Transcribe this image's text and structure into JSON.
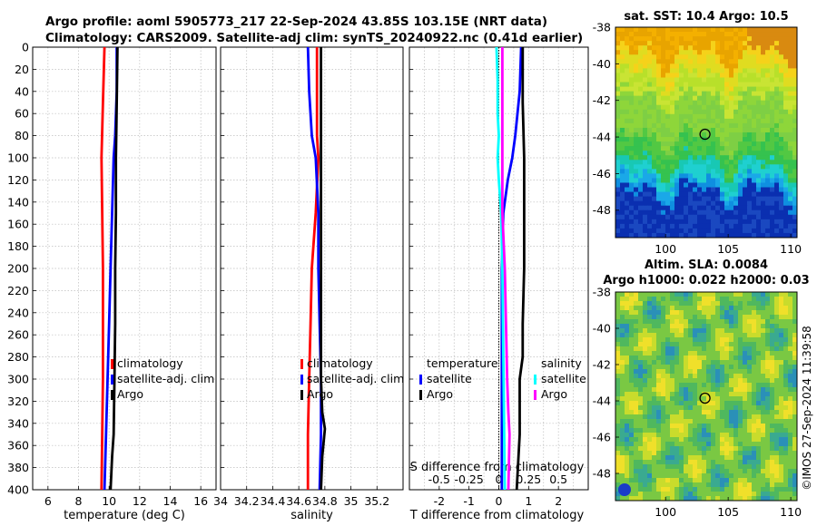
{
  "header": {
    "title_line1": "Argo profile: aoml 5905773_217 22-Sep-2024 43.85S 103.15E (NRT data)",
    "title_line2": "Climatology: CARS2009. Satellite-adj clim: synTS_20240922.nc (0.41d earlier)"
  },
  "copyright": "©IMOS 27-Sep-2024 11:39:58",
  "colors": {
    "climatology": "#ff0000",
    "satellite": "#0000ff",
    "argo": "#000000",
    "t_satellite": "#0000ff",
    "t_argo": "#000000",
    "s_satellite": "#00ffff",
    "s_argo": "#ff00ff"
  },
  "chart_data": [
    {
      "id": "temperature",
      "type": "line",
      "xlabel": "temperature (deg C)",
      "xlim": [
        5,
        17
      ],
      "xticks": [
        6,
        8,
        10,
        12,
        14,
        16
      ],
      "ylim": [
        0,
        400
      ],
      "yticks": [
        0,
        20,
        40,
        60,
        80,
        100,
        120,
        140,
        160,
        180,
        200,
        220,
        240,
        260,
        280,
        300,
        320,
        340,
        360,
        380,
        400
      ],
      "y_reversed": true,
      "grid": true,
      "legend": [
        "climatology",
        "satellite-adj. clim",
        "Argo"
      ],
      "series": [
        {
          "name": "climatology",
          "color": "red",
          "depth": [
            0,
            50,
            100,
            150,
            200,
            250,
            300,
            350,
            400
          ],
          "values": [
            9.7,
            9.6,
            9.5,
            9.55,
            9.6,
            9.6,
            9.6,
            9.55,
            9.5
          ]
        },
        {
          "name": "satellite-adj. clim",
          "color": "blue",
          "depth": [
            0,
            40,
            80,
            100,
            150,
            200,
            250,
            300,
            350,
            400
          ],
          "values": [
            10.5,
            10.5,
            10.4,
            10.3,
            10.2,
            10.1,
            10.0,
            9.9,
            9.8,
            9.7
          ]
        },
        {
          "name": "Argo",
          "color": "black",
          "depth": [
            0,
            50,
            100,
            150,
            200,
            250,
            300,
            350,
            370,
            400
          ],
          "values": [
            10.55,
            10.5,
            10.45,
            10.45,
            10.4,
            10.4,
            10.35,
            10.3,
            10.2,
            10.1
          ]
        }
      ]
    },
    {
      "id": "salinity",
      "type": "line",
      "xlabel": "salinity",
      "xlim": [
        34,
        35.4
      ],
      "xticks": [
        34,
        34.2,
        34.4,
        34.6,
        34.8,
        35,
        35.2
      ],
      "xtick_labels": [
        "34",
        "34.2",
        "34.4",
        "34.6",
        "34.8",
        "35",
        "35.2"
      ],
      "ylim": [
        0,
        400
      ],
      "y_reversed": true,
      "grid": true,
      "legend": [
        "climatology",
        "satellite-adj. clim",
        "Argo"
      ],
      "series": [
        {
          "name": "climatology",
          "color": "red",
          "depth": [
            0,
            40,
            80,
            100,
            150,
            200,
            250,
            300,
            350,
            400
          ],
          "values": [
            34.74,
            34.74,
            34.74,
            34.75,
            34.73,
            34.7,
            34.69,
            34.68,
            34.67,
            34.67
          ]
        },
        {
          "name": "satellite-adj. clim",
          "color": "blue",
          "depth": [
            0,
            40,
            80,
            100,
            150,
            200,
            250,
            300,
            350,
            400
          ],
          "values": [
            34.67,
            34.68,
            34.7,
            34.73,
            34.75,
            34.75,
            34.76,
            34.77,
            34.77,
            34.76
          ]
        },
        {
          "name": "Argo",
          "color": "black",
          "depth": [
            0,
            50,
            100,
            150,
            200,
            250,
            300,
            330,
            345,
            370,
            400
          ],
          "values": [
            34.77,
            34.77,
            34.77,
            34.77,
            34.77,
            34.77,
            34.77,
            34.78,
            34.8,
            34.78,
            34.77
          ]
        }
      ]
    },
    {
      "id": "differences",
      "type": "line",
      "xlabel": "T difference from climatology",
      "xlim": [
        -3,
        3
      ],
      "xticks": [
        -2,
        -1,
        0,
        1,
        2
      ],
      "xtick_labels": [
        "-2",
        "-1",
        "0",
        "1",
        "2"
      ],
      "s_axis_label": "S difference from climatology",
      "s_xlim": [
        -0.75,
        0.75
      ],
      "s_xticks": [
        -0.5,
        -0.25,
        0,
        0.25,
        0.5
      ],
      "s_xtick_labels": [
        "-0.5",
        "-0.25",
        "0",
        "0.25",
        "0.5"
      ],
      "ylim": [
        0,
        400
      ],
      "y_reversed": true,
      "grid": true,
      "legend_temperature_title": "temperature",
      "legend_salinity_title": "salinity",
      "legend_temperature": [
        "satellite",
        "Argo"
      ],
      "legend_salinity": [
        "satellite",
        "Argo"
      ],
      "series": [
        {
          "name": "T satellite",
          "color": "blue",
          "axis": "T",
          "depth": [
            0,
            40,
            80,
            100,
            120,
            150,
            200,
            250,
            300,
            350,
            400
          ],
          "values": [
            0.75,
            0.7,
            0.55,
            0.45,
            0.3,
            0.15,
            0.1,
            0.1,
            0.1,
            0.1,
            0.1
          ]
        },
        {
          "name": "T Argo",
          "color": "black",
          "axis": "T",
          "depth": [
            0,
            50,
            100,
            150,
            200,
            250,
            280,
            300,
            350,
            400
          ],
          "values": [
            0.8,
            0.8,
            0.85,
            0.85,
            0.85,
            0.8,
            0.8,
            0.7,
            0.7,
            0.6
          ]
        },
        {
          "name": "S satellite",
          "color": "cyan",
          "axis": "S",
          "depth": [
            0,
            30,
            60,
            80,
            100,
            120,
            150,
            200,
            400
          ],
          "values": [
            -0.02,
            -0.01,
            -0.01,
            0.0,
            -0.01,
            0.0,
            0.02,
            0.03,
            0.05
          ]
        },
        {
          "name": "S Argo",
          "color": "magenta",
          "axis": "S",
          "depth": [
            0,
            50,
            100,
            150,
            200,
            250,
            300,
            330,
            350,
            400
          ],
          "values": [
            0.03,
            0.03,
            0.03,
            0.03,
            0.05,
            0.06,
            0.07,
            0.08,
            0.09,
            0.08
          ]
        }
      ]
    },
    {
      "id": "sst_map",
      "type": "heatmap",
      "title": "sat. SST: 10.4 Argo: 10.5",
      "xlim": [
        96,
        110.5
      ],
      "ylim": [
        -49.5,
        -38
      ],
      "xticks": [
        100,
        105,
        110
      ],
      "yticks": [
        -38,
        -40,
        -42,
        -44,
        -46,
        -48
      ],
      "marker": {
        "lon": 103.15,
        "lat": -43.85
      }
    },
    {
      "id": "sla_map",
      "type": "heatmap",
      "title_line1": "Altim. SLA: 0.0084",
      "title_line2": "Argo h1000: 0.022 h2000: 0.03",
      "xlim": [
        96,
        110.5
      ],
      "ylim": [
        -49.5,
        -38
      ],
      "xticks": [
        100,
        105,
        110
      ],
      "yticks": [
        -38,
        -40,
        -42,
        -44,
        -46,
        -48
      ],
      "marker": {
        "lon": 103.15,
        "lat": -43.85
      }
    }
  ]
}
